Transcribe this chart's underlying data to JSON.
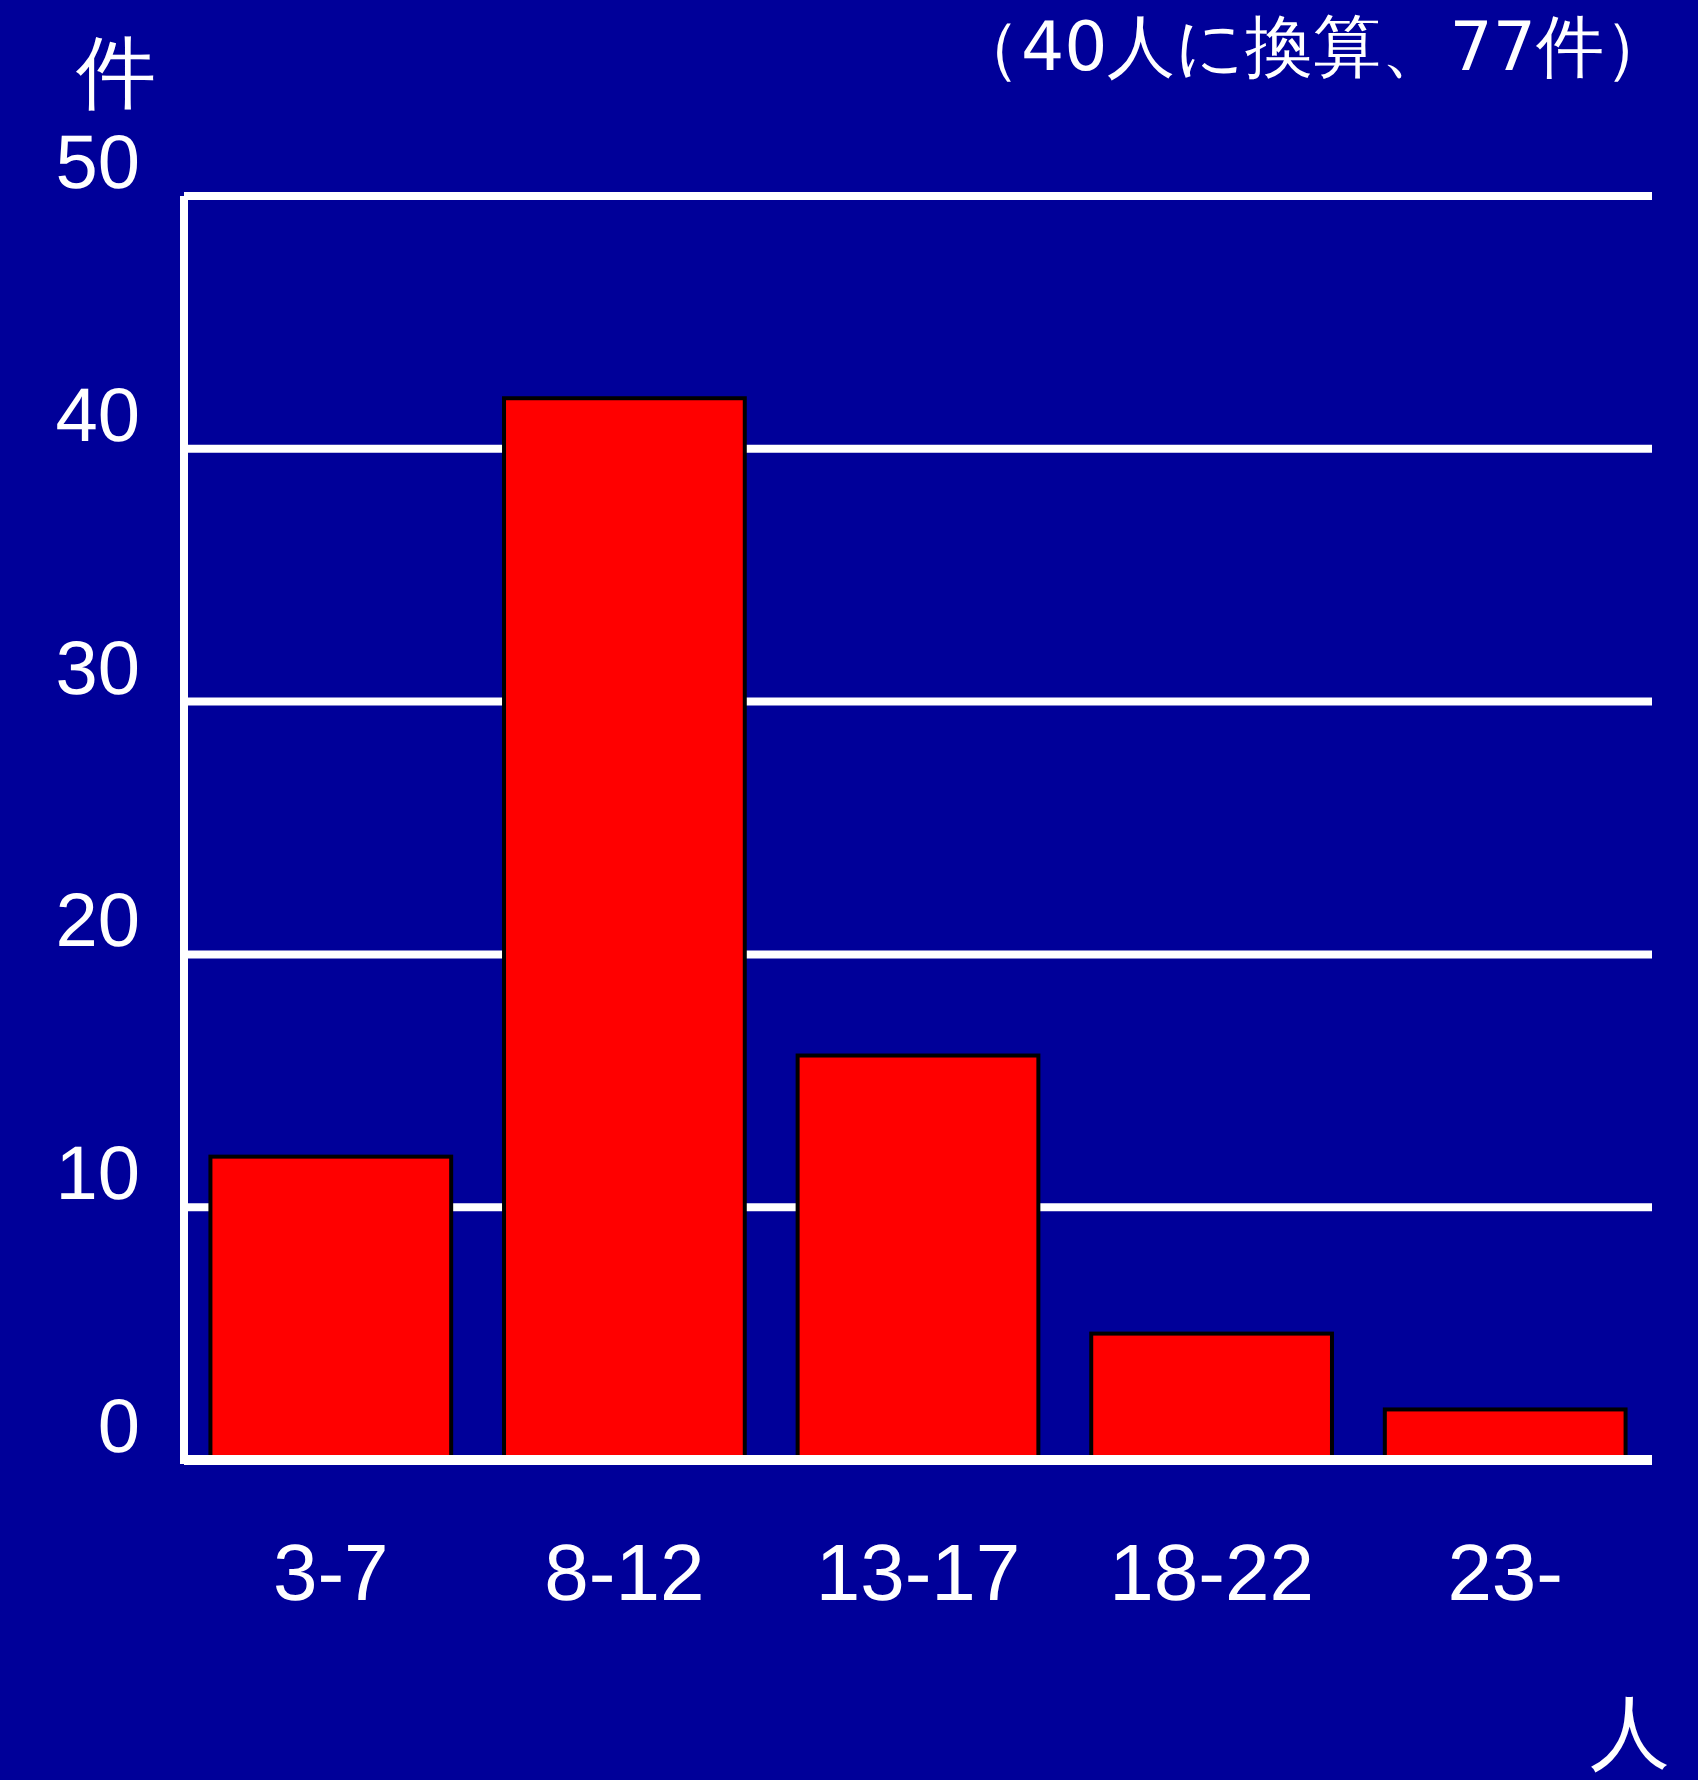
{
  "chart_data": {
    "type": "bar",
    "title": "（40人に換算、77件）",
    "ylabel": "件",
    "xlabel": "人",
    "categories": [
      "3-7",
      "8-12",
      "13-17",
      "18-22",
      "23-"
    ],
    "values": [
      12,
      42,
      16,
      5,
      2
    ],
    "color": "#ff0000",
    "ylim": [
      0,
      50
    ],
    "yticks": [
      0,
      10,
      20,
      30,
      40,
      50
    ],
    "grid": "y"
  }
}
